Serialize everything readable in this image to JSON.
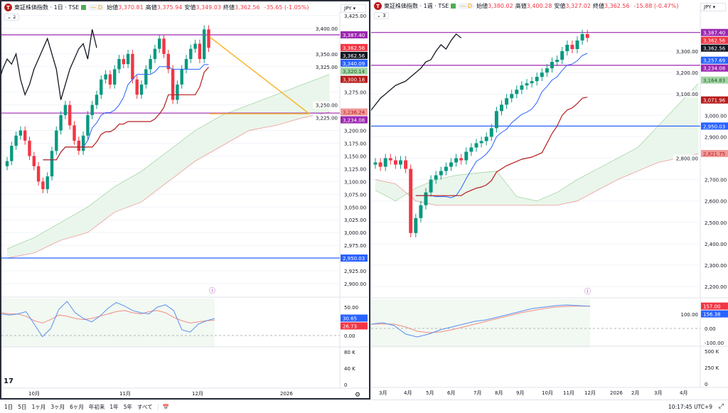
{
  "left": {
    "symbol": "東証株価指数 · 1日 · TSE",
    "interval_badge": "D",
    "open_label": "始値",
    "open": "3,370.81",
    "high_label": "高値",
    "high": "3,375.94",
    "low_label": "安値",
    "low": "3,349.03",
    "close_label": "終値",
    "close": "3,362.56",
    "change": "-35.65 (-1.05%)",
    "currency": "JPY",
    "legend_count": "2",
    "price_ticks": [
      "3,425.00",
      "3,400.00",
      "3,350.00",
      "3,325.00",
      "3,275.00",
      "3,250.00",
      "3,225.00",
      "3,200.00",
      "3,175.00",
      "3,150.00",
      "3,125.00",
      "3,100.00",
      "3,075.00",
      "3,050.00",
      "3,025.00",
      "3,000.00",
      "2,975.00",
      "2,925.00",
      "2,900.00"
    ],
    "price_labels": [
      {
        "text": "3,387.40",
        "color": "#9c27b0"
      },
      {
        "text": "3,362.56",
        "color": "#f23645"
      },
      {
        "text": "3,362.56",
        "color": "#131722"
      },
      {
        "text": "3,340.09",
        "color": "#2962ff"
      },
      {
        "text": "3,320.14",
        "color": "#a5d6a7",
        "fg": "#1b5e20"
      },
      {
        "text": "3,300.18",
        "color": "#b71c1c"
      },
      {
        "text": "3,236.24",
        "color": "#ef9a9a",
        "fg": "#b71c1c"
      },
      {
        "text": "3,234.08",
        "color": "#9c27b0"
      },
      {
        "text": "2,950.03",
        "color": "#2962ff"
      }
    ],
    "osc_ticks": [
      "50.00",
      "0.00"
    ],
    "osc_labels": [
      {
        "text": "30.65",
        "color": "#2962ff"
      },
      {
        "text": "26.73",
        "color": "#f23645"
      }
    ],
    "vol_ticks": [
      "80 K",
      "40 K",
      "0"
    ],
    "time_ticks": [
      "10月",
      "11月",
      "12月",
      "2026"
    ]
  },
  "right": {
    "symbol": "東証株価指数 · 1週 · TSE",
    "interval_badge": "D",
    "open_label": "始値",
    "open": "3,380.02",
    "high_label": "高値",
    "high": "3,400.28",
    "low_label": "安値",
    "low": "3,327.02",
    "close_label": "終値",
    "close": "3,362.56",
    "change": "-15.88 (-0.47%)",
    "currency": "JPY",
    "legend_count": "3",
    "price_ticks": [
      "3,300.00",
      "3,200.00",
      "3,100.00",
      "3,000.00",
      "2,900.00",
      "2,800.00",
      "2,700.00",
      "2,600.00",
      "2,500.00",
      "2,400.00",
      "2,300.00",
      "2,200.00"
    ],
    "price_labels": [
      {
        "text": "3,387.40",
        "color": "#9c27b0"
      },
      {
        "text": "3,362.56",
        "color": "#f23645"
      },
      {
        "text": "3,362.56",
        "color": "#131722"
      },
      {
        "text": "3,257.69",
        "color": "#2962ff"
      },
      {
        "text": "3,234.08",
        "color": "#9c27b0"
      },
      {
        "text": "3,164.83",
        "color": "#a5d6a7",
        "fg": "#1b5e20"
      },
      {
        "text": "3,071.96",
        "color": "#b71c1c"
      },
      {
        "text": "2,950.03",
        "color": "#2962ff"
      },
      {
        "text": "2,821.75",
        "color": "#ef9a9a",
        "fg": "#b71c1c"
      }
    ],
    "osc_ticks": [
      "100.00",
      "0.00",
      "-100.00"
    ],
    "osc_labels": [
      {
        "text": "157.00",
        "color": "#f23645"
      },
      {
        "text": "156.38",
        "color": "#2962ff"
      }
    ],
    "vol_ticks": [
      "500 K",
      "250 K",
      "0"
    ],
    "time_ticks": [
      "3月",
      "4月",
      "5月",
      "6月",
      "7月",
      "8月",
      "9月",
      "10月",
      "11月",
      "12月",
      "2026",
      "2月",
      "3月",
      "4月"
    ]
  },
  "toolbar": {
    "ranges": [
      "1日",
      "5日",
      "1ヶ月",
      "3ヶ月",
      "6ヶ月",
      "年初来",
      "1年",
      "5年",
      "すべて"
    ],
    "clock": "10:17:45 UTC+9"
  },
  "colors": {
    "up": "#089981",
    "down": "#f23645",
    "tenkan": "#2962ff",
    "kijun": "#b71c1c",
    "chikou": "#131722",
    "cloud": "#e8f5e9",
    "hline": "#9c27b0",
    "blue_line": "#2962ff",
    "arrow": "#f7b731"
  },
  "chart_data": [
    {
      "type": "candlestick",
      "name": "daily",
      "closes": [
        3140,
        3170,
        3190,
        3200,
        3180,
        3150,
        3130,
        3100,
        3085,
        3110,
        3160,
        3200,
        3230,
        3250,
        3210,
        3180,
        3160,
        3190,
        3230,
        3250,
        3270,
        3300,
        3310,
        3290,
        3320,
        3340,
        3330,
        3350,
        3300,
        3270,
        3290,
        3320,
        3340,
        3360,
        3380,
        3350,
        3320,
        3260,
        3290,
        3320,
        3340,
        3360,
        3370,
        3340,
        3398,
        3362
      ],
      "span_a": [
        2968,
        2990,
        3020,
        3050,
        3090,
        3120,
        3160,
        3200,
        3230,
        3250,
        3270,
        3290,
        3310
      ],
      "span_b": [
        2950,
        2960,
        2985,
        3000,
        3040,
        3060,
        3100,
        3140,
        3170,
        3200,
        3210,
        3225,
        3236
      ],
      "cloud_step": 6,
      "hlines": [
        3387.4,
        3234.08,
        2950.03
      ],
      "ylim": [
        2900,
        3425
      ],
      "osc_k": [
        38,
        36,
        38,
        42,
        20,
        -2,
        12,
        46,
        60,
        40,
        30,
        24,
        34,
        48,
        58,
        52,
        44,
        40,
        38,
        50,
        54,
        44,
        10,
        6,
        20,
        26,
        30
      ],
      "osc_d": [
        40,
        38,
        38,
        34,
        26,
        22,
        28,
        36,
        34,
        30,
        28,
        30,
        34,
        38,
        42,
        44,
        40,
        38,
        42,
        44,
        40,
        32,
        26,
        22,
        24,
        26,
        27
      ]
    },
    {
      "type": "candlestick",
      "name": "weekly",
      "closes": [
        2780,
        2760,
        2800,
        2790,
        2770,
        2790,
        2750,
        2450,
        2520,
        2580,
        2640,
        2700,
        2720,
        2740,
        2760,
        2780,
        2800,
        2790,
        2830,
        2850,
        2870,
        2880,
        2900,
        2940,
        3020,
        3050,
        3080,
        3100,
        3120,
        3140,
        3150,
        3160,
        3180,
        3200,
        3220,
        3250,
        3260,
        3300,
        3330,
        3310,
        3350,
        3380,
        3362
      ],
      "span_a": [
        2650,
        2600,
        2660,
        2700,
        2720,
        2730,
        2740,
        2620,
        2600,
        2640,
        2700,
        2750,
        2800,
        2850,
        2950,
        3050,
        3150
      ],
      "span_b": [
        2700,
        2680,
        2600,
        2580,
        2580,
        2580,
        2580,
        2580,
        2580,
        2580,
        2600,
        2650,
        2700,
        2740,
        2780,
        2800,
        2821
      ],
      "cloud_step": 4,
      "hlines": [
        3387.4,
        3234.08,
        2950.03
      ],
      "ylim": [
        2200,
        3400
      ],
      "osc_k": [
        30,
        40,
        20,
        -40,
        -60,
        -40,
        -10,
        10,
        30,
        50,
        60,
        80,
        100,
        120,
        140,
        150,
        160,
        165,
        160,
        156
      ],
      "osc_d": [
        30,
        32,
        30,
        10,
        -20,
        -30,
        -25,
        -10,
        10,
        30,
        50,
        70,
        90,
        110,
        125,
        140,
        150,
        155,
        157,
        157
      ]
    }
  ]
}
